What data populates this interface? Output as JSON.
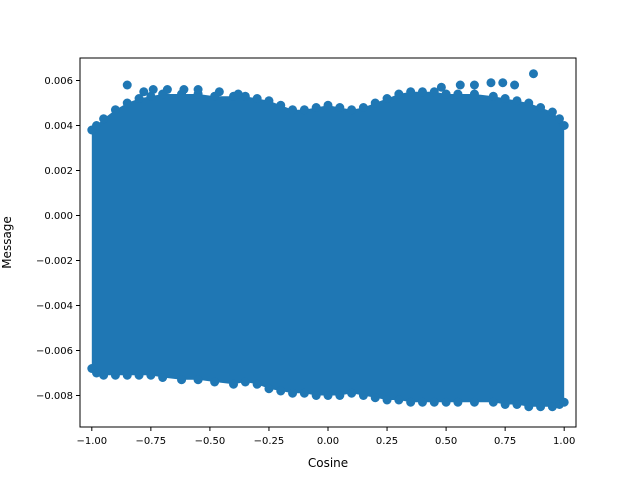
{
  "chart_data": {
    "type": "scatter",
    "title": "",
    "xlabel": "Cosine",
    "ylabel": "Message",
    "xlim": [
      -1.05,
      1.05
    ],
    "ylim": [
      -0.0094,
      0.007
    ],
    "xticks": [
      -1.0,
      -0.75,
      -0.5,
      -0.25,
      0.0,
      0.25,
      0.5,
      0.75,
      1.0
    ],
    "xtick_labels": [
      "−1.00",
      "−0.75",
      "−0.50",
      "−0.25",
      "0.00",
      "0.25",
      "0.50",
      "0.75",
      "1.00"
    ],
    "yticks": [
      -0.008,
      -0.006,
      -0.004,
      -0.002,
      0.0,
      0.002,
      0.004,
      0.006
    ],
    "ytick_labels": [
      "−0.008",
      "−0.006",
      "−0.004",
      "−0.002",
      "0.000",
      "0.002",
      "0.004",
      "0.006"
    ],
    "grid": false,
    "marker_color": "#1f77b4",
    "series": [
      {
        "x": [
          -1.0,
          -0.98,
          -0.95,
          -0.9,
          -0.85,
          -0.8,
          -0.75,
          -0.7,
          -0.62,
          -0.55,
          -0.48,
          -0.4,
          -0.35,
          -0.3,
          -0.25,
          -0.2,
          -0.15,
          -0.1,
          -0.05,
          0.0,
          0.05,
          0.1,
          0.15,
          0.2,
          0.25,
          0.3,
          0.35,
          0.4,
          0.45,
          0.5,
          0.55,
          0.62,
          0.7,
          0.75,
          0.8,
          0.85,
          0.9,
          0.95,
          0.98,
          1.0
        ],
        "y_top": [
          0.0038,
          0.004,
          0.0043,
          0.0047,
          0.005,
          0.0052,
          0.0053,
          0.0054,
          0.0054,
          0.0054,
          0.0053,
          0.0053,
          0.0053,
          0.0052,
          0.0051,
          0.0049,
          0.0047,
          0.0047,
          0.0048,
          0.0049,
          0.0048,
          0.0047,
          0.0048,
          0.005,
          0.0052,
          0.0054,
          0.0055,
          0.0055,
          0.0055,
          0.0054,
          0.0054,
          0.0054,
          0.0053,
          0.0052,
          0.0051,
          0.005,
          0.0048,
          0.0046,
          0.0043,
          0.004
        ],
        "y_bottom": [
          -0.0068,
          -0.007,
          -0.0071,
          -0.0071,
          -0.0071,
          -0.0071,
          -0.0071,
          -0.0072,
          -0.0073,
          -0.0073,
          -0.0074,
          -0.0075,
          -0.0074,
          -0.0075,
          -0.0077,
          -0.0078,
          -0.0079,
          -0.0079,
          -0.008,
          -0.008,
          -0.008,
          -0.0079,
          -0.008,
          -0.0081,
          -0.0082,
          -0.0082,
          -0.0083,
          -0.0083,
          -0.0083,
          -0.0083,
          -0.0083,
          -0.0083,
          -0.0083,
          -0.0084,
          -0.0084,
          -0.0085,
          -0.0085,
          -0.0085,
          -0.0084,
          -0.0083
        ]
      }
    ],
    "outliers": [
      {
        "x": -0.85,
        "y": 0.0058
      },
      {
        "x": -0.78,
        "y": 0.0055
      },
      {
        "x": -0.74,
        "y": 0.0056
      },
      {
        "x": -0.68,
        "y": 0.0056
      },
      {
        "x": -0.61,
        "y": 0.0056
      },
      {
        "x": -0.55,
        "y": 0.0056
      },
      {
        "x": -0.46,
        "y": 0.0055
      },
      {
        "x": -0.38,
        "y": 0.0054
      },
      {
        "x": 0.48,
        "y": 0.0057
      },
      {
        "x": 0.56,
        "y": 0.0058
      },
      {
        "x": 0.62,
        "y": 0.0058
      },
      {
        "x": 0.69,
        "y": 0.0059
      },
      {
        "x": 0.74,
        "y": 0.0059
      },
      {
        "x": 0.79,
        "y": 0.0058
      },
      {
        "x": 0.87,
        "y": 0.0063
      }
    ]
  }
}
